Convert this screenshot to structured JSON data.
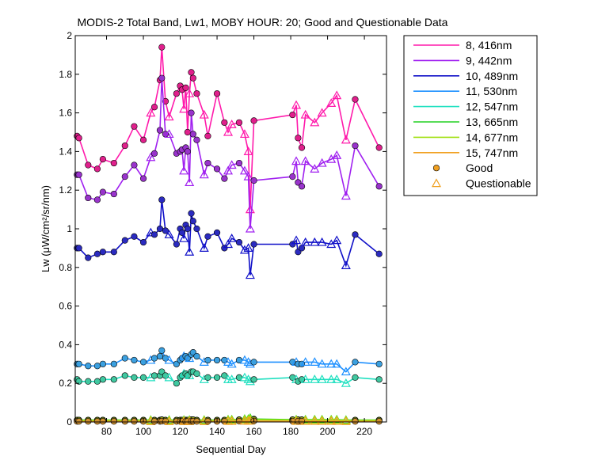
{
  "chart_data": {
    "type": "line",
    "title": "MODIS-2 Total Band,  Lw1, MOBY HOUR: 20;  Good and Questionable Data",
    "xlabel": "Sequential Day",
    "ylabel": "Lw (μW/cm²/sr/nm)",
    "xlim": [
      63,
      232
    ],
    "ylim": [
      0,
      2
    ],
    "xticks": [
      80,
      100,
      120,
      140,
      160,
      180,
      200,
      220
    ],
    "yticks": [
      0,
      0.2,
      0.4,
      0.6,
      0.8,
      1,
      1.2,
      1.4,
      1.6,
      1.8,
      2
    ],
    "ytick_labels": [
      "0",
      "0.2",
      "0.4",
      "0.6",
      "0.8",
      "1",
      "1.2",
      "1.4",
      "1.6",
      "1.8",
      "2"
    ],
    "grid": false,
    "legend_position": "outside-right",
    "x": [
      64,
      65,
      70,
      75,
      78,
      84,
      90,
      95,
      100,
      104,
      106,
      109,
      110,
      112,
      114,
      118,
      120,
      121,
      122,
      123,
      124,
      125,
      126,
      127,
      129,
      133,
      135,
      140,
      144,
      146,
      148,
      152,
      155,
      157,
      158,
      160,
      181,
      183,
      184,
      186,
      188,
      193,
      197,
      202,
      205,
      210,
      215,
      228
    ],
    "quality": [
      "g",
      "g",
      "g",
      "g",
      "g",
      "g",
      "g",
      "g",
      "g",
      "q",
      "g",
      "g",
      "g",
      "g",
      "q",
      "g",
      "g",
      "g",
      "q",
      "g",
      "g",
      "q",
      "g",
      "g",
      "g",
      "q",
      "g",
      "g",
      "g",
      "q",
      "q",
      "g",
      "q",
      "q",
      "q",
      "g",
      "g",
      "q",
      "g",
      "g",
      "q",
      "q",
      "q",
      "q",
      "q",
      "q",
      "g",
      "g"
    ],
    "series": [
      {
        "name": "8, 416nm",
        "color": "#ff1aab",
        "marker_fill": "#e0208c",
        "values": [
          1.48,
          1.47,
          1.33,
          1.31,
          1.36,
          1.34,
          1.43,
          1.53,
          1.46,
          1.6,
          1.63,
          1.77,
          1.94,
          1.66,
          1.58,
          1.7,
          1.74,
          1.72,
          1.62,
          1.73,
          1.5,
          1.7,
          1.81,
          1.78,
          1.7,
          1.59,
          1.48,
          1.7,
          1.55,
          1.5,
          1.54,
          1.55,
          1.49,
          1.4,
          1.1,
          1.56,
          1.59,
          1.64,
          1.47,
          1.42,
          1.59,
          1.55,
          1.6,
          1.65,
          1.69,
          1.46,
          1.67,
          1.42
        ]
      },
      {
        "name": "9, 442nm",
        "color": "#a020f0",
        "marker_fill": "#9933cc",
        "values": [
          1.28,
          1.28,
          1.16,
          1.15,
          1.19,
          1.18,
          1.27,
          1.33,
          1.26,
          1.37,
          1.39,
          1.51,
          1.78,
          1.49,
          1.49,
          1.39,
          1.4,
          1.41,
          1.3,
          1.42,
          1.4,
          1.24,
          1.6,
          1.49,
          1.46,
          1.28,
          1.34,
          1.31,
          1.26,
          1.3,
          1.33,
          1.34,
          1.3,
          1.27,
          1.0,
          1.25,
          1.27,
          1.35,
          1.24,
          1.22,
          1.35,
          1.31,
          1.34,
          1.36,
          1.38,
          1.17,
          1.43,
          1.22
        ]
      },
      {
        "name": "10, 489nm",
        "color": "#1010c8",
        "marker_fill": "#2b2bc0",
        "values": [
          0.9,
          0.9,
          0.85,
          0.87,
          0.88,
          0.88,
          0.94,
          0.96,
          0.93,
          0.98,
          0.97,
          1.0,
          1.15,
          0.99,
          0.97,
          0.92,
          1.0,
          0.98,
          0.95,
          1.02,
          1.0,
          0.88,
          1.08,
          1.04,
          1.0,
          0.9,
          0.96,
          0.98,
          0.9,
          0.92,
          0.95,
          0.93,
          0.89,
          0.9,
          0.76,
          0.92,
          0.92,
          0.94,
          0.88,
          0.9,
          0.93,
          0.93,
          0.93,
          0.92,
          0.94,
          0.81,
          0.97,
          0.87
        ]
      },
      {
        "name": "11, 530nm",
        "color": "#1e90ff",
        "marker_fill": "#3ba0e0",
        "values": [
          0.3,
          0.3,
          0.29,
          0.29,
          0.3,
          0.3,
          0.33,
          0.32,
          0.31,
          0.32,
          0.33,
          0.34,
          0.37,
          0.33,
          0.32,
          0.3,
          0.32,
          0.33,
          0.34,
          0.34,
          0.33,
          0.33,
          0.35,
          0.36,
          0.34,
          0.31,
          0.32,
          0.32,
          0.32,
          0.31,
          0.3,
          0.32,
          0.32,
          0.31,
          0.3,
          0.31,
          0.31,
          0.31,
          0.3,
          0.3,
          0.31,
          0.31,
          0.3,
          0.3,
          0.3,
          0.26,
          0.31,
          0.3
        ]
      },
      {
        "name": "12, 547nm",
        "color": "#20e0c0",
        "marker_fill": "#40c8a0",
        "values": [
          0.22,
          0.21,
          0.21,
          0.21,
          0.22,
          0.22,
          0.24,
          0.23,
          0.23,
          0.23,
          0.24,
          0.24,
          0.26,
          0.24,
          0.23,
          0.2,
          0.23,
          0.24,
          0.25,
          0.25,
          0.24,
          0.24,
          0.26,
          0.26,
          0.25,
          0.22,
          0.23,
          0.23,
          0.24,
          0.22,
          0.22,
          0.23,
          0.23,
          0.22,
          0.21,
          0.22,
          0.23,
          0.22,
          0.21,
          0.22,
          0.22,
          0.22,
          0.22,
          0.22,
          0.22,
          0.2,
          0.23,
          0.22
        ]
      },
      {
        "name": "13, 665nm",
        "color": "#20d020",
        "marker_fill": "#40b040",
        "values": [
          0.01,
          0.01,
          0.01,
          0.01,
          0.01,
          0.01,
          0.01,
          0.01,
          0.01,
          0.01,
          0.01,
          0.01,
          0.012,
          0.01,
          0.01,
          0.01,
          0.01,
          0.01,
          0.01,
          0.01,
          0.01,
          0.01,
          0.012,
          0.012,
          0.01,
          0.01,
          0.01,
          0.01,
          0.01,
          0.012,
          0.012,
          0.012,
          0.015,
          0.015,
          0.02,
          0.015,
          0.012,
          0.012,
          0.012,
          0.012,
          0.012,
          0.012,
          0.012,
          0.012,
          0.012,
          0.01,
          0.01,
          0.01
        ]
      },
      {
        "name": "14, 677nm",
        "color": "#a0e010",
        "marker_fill": "#b0c820",
        "values": [
          0.008,
          0.008,
          0.008,
          0.008,
          0.008,
          0.008,
          0.008,
          0.008,
          0.008,
          0.008,
          0.008,
          0.008,
          0.01,
          0.008,
          0.008,
          0.008,
          0.008,
          0.008,
          0.008,
          0.008,
          0.008,
          0.008,
          0.01,
          0.01,
          0.008,
          0.008,
          0.008,
          0.008,
          0.008,
          0.01,
          0.01,
          0.01,
          0.012,
          0.012,
          0.015,
          0.012,
          0.01,
          0.01,
          0.01,
          0.01,
          0.01,
          0.01,
          0.01,
          0.01,
          0.01,
          0.008,
          0.008,
          0.008
        ]
      },
      {
        "name": "15, 747nm",
        "color": "#f0a020",
        "marker_fill": "#d09030",
        "values": [
          0.003,
          0.003,
          0.003,
          0.003,
          0.003,
          0.003,
          0.003,
          0.003,
          0.003,
          0.003,
          0.003,
          0.003,
          0.004,
          0.003,
          0.003,
          0.003,
          0.003,
          0.003,
          0.003,
          0.003,
          0.003,
          0.003,
          0.004,
          0.004,
          0.003,
          0.003,
          0.003,
          0.003,
          0.003,
          0.004,
          0.004,
          0.004,
          0.005,
          0.005,
          0.006,
          0.005,
          0.004,
          0.004,
          0.004,
          0.004,
          0.004,
          0.004,
          0.004,
          0.004,
          0.004,
          0.003,
          0.003,
          0.003
        ]
      }
    ],
    "legend_markers": [
      {
        "label": "Good",
        "marker": "circle",
        "color": "#f0a020"
      },
      {
        "label": "Questionable",
        "marker": "triangle",
        "color": "#f0a020"
      }
    ]
  }
}
